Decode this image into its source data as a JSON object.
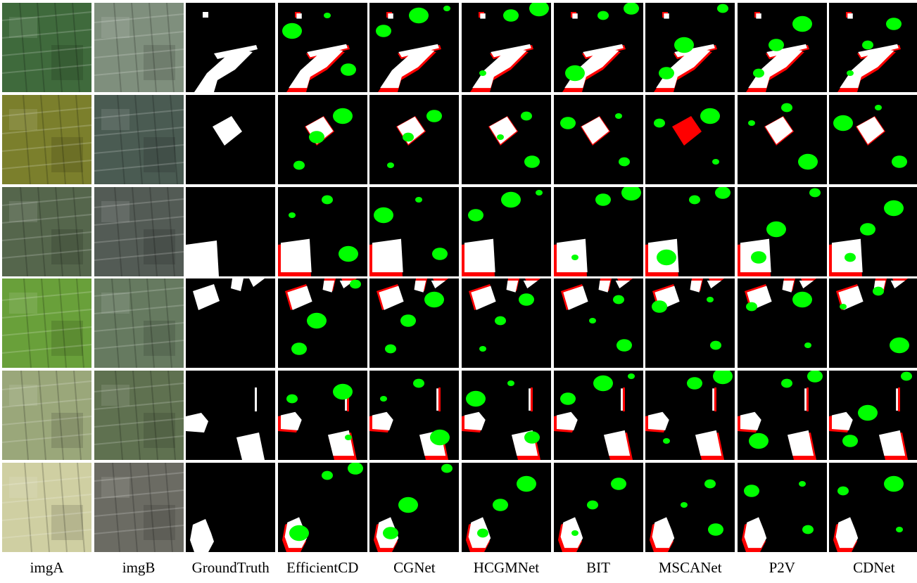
{
  "columns": [
    {
      "label": "imgA"
    },
    {
      "label": "imgB"
    },
    {
      "label": "GroundTruth"
    },
    {
      "label": "EfficientCD"
    },
    {
      "label": "CGNet"
    },
    {
      "label": "HCGMNet"
    },
    {
      "label": "BIT"
    },
    {
      "label": "MSCANet"
    },
    {
      "label": "P2V"
    },
    {
      "label": "CDNet"
    }
  ],
  "legend_colors": {
    "true_positive": "#ffffff",
    "false_negative": "#ff0000",
    "false_positive": "#00ff00",
    "true_negative": "#000000"
  },
  "rows": [
    {
      "imgA_color": "#3f6a3c",
      "imgB_color": "#7f8f7d"
    },
    {
      "imgA_color": "#7b7f2c",
      "imgB_color": "#4a5b52"
    },
    {
      "imgA_color": "#55664c",
      "imgB_color": "#535b55"
    },
    {
      "imgA_color": "#69a03a",
      "imgB_color": "#667a60"
    },
    {
      "imgA_color": "#9aa77a",
      "imgB_color": "#5f7150"
    },
    {
      "imgA_color": "#cfcfa2",
      "imgB_color": "#6b6b63"
    }
  ]
}
